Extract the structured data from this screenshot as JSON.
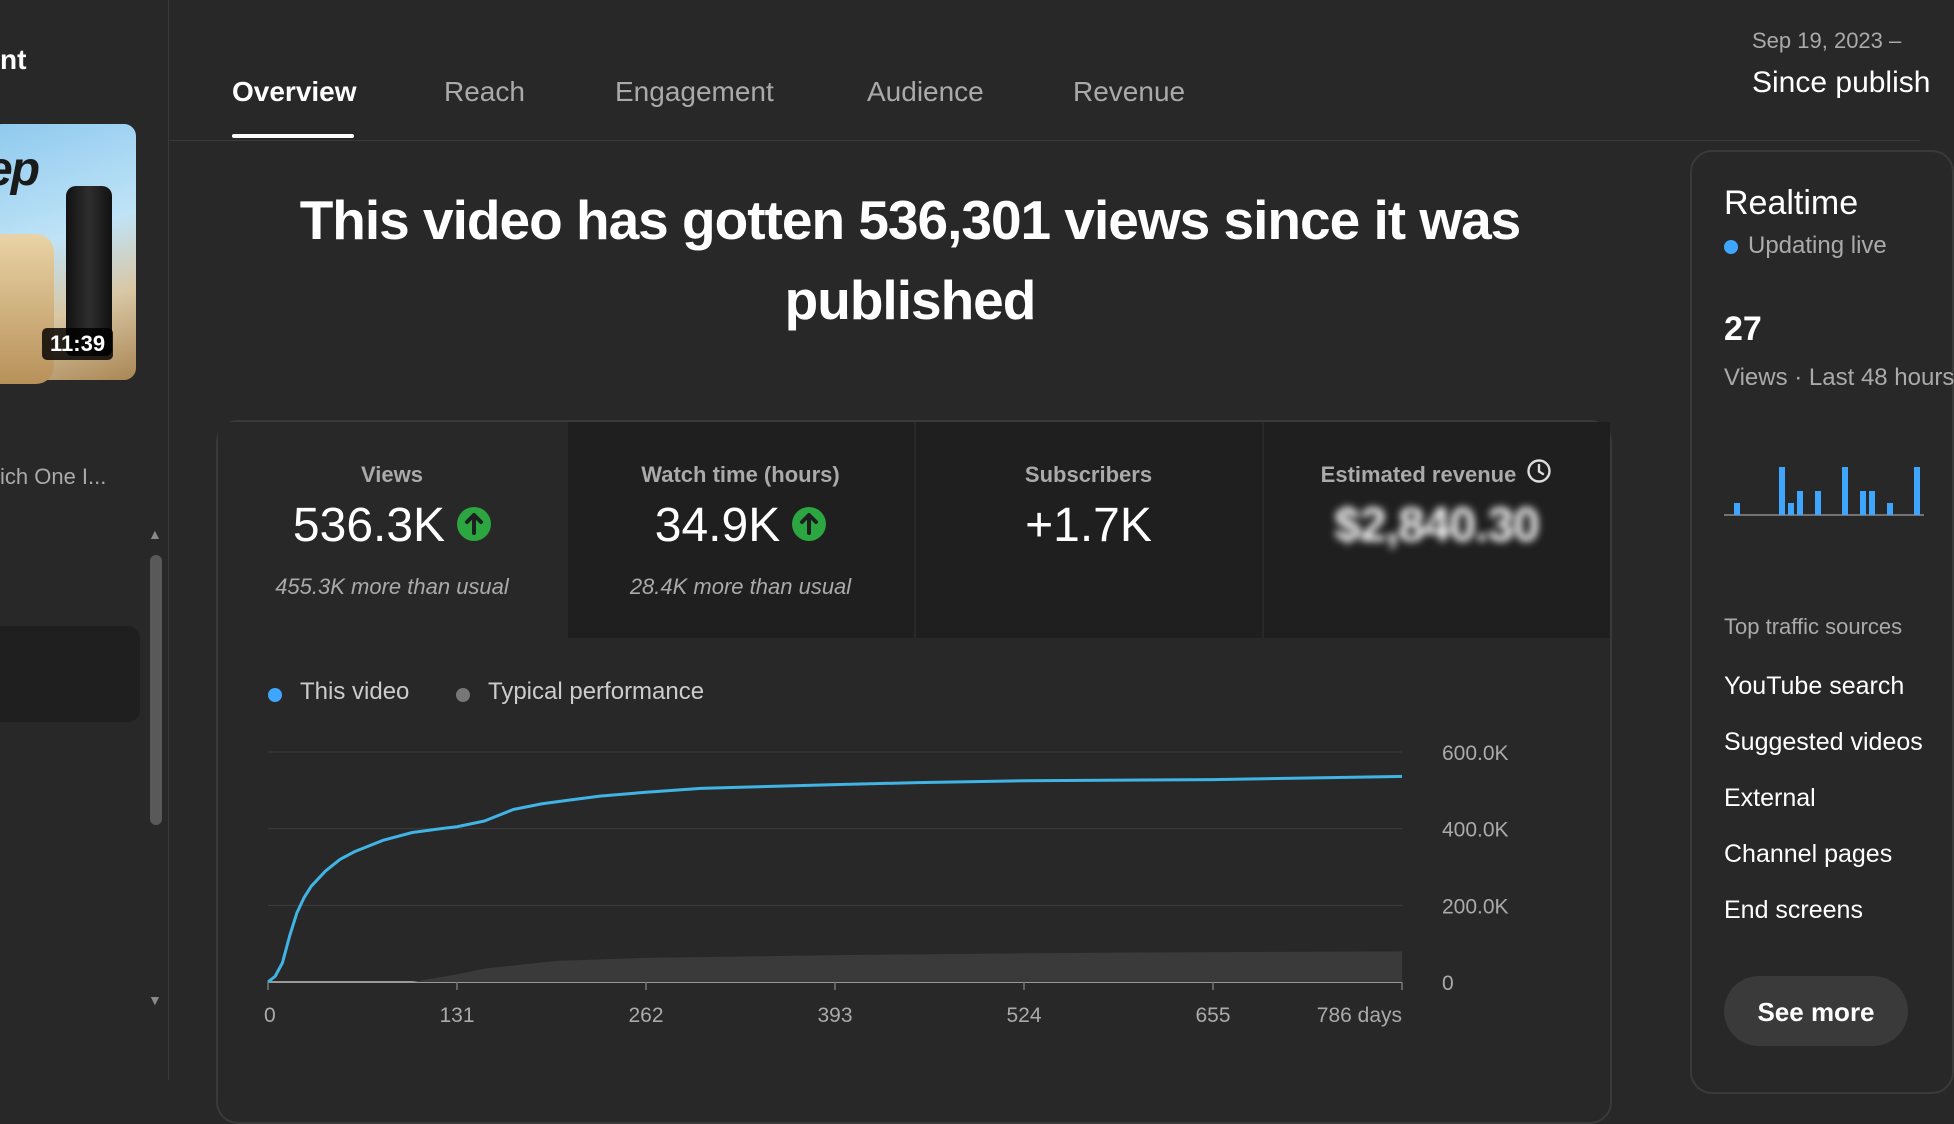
{
  "sidebar": {
    "title_fragment": "nt",
    "thumbnail": {
      "duration": "11:39",
      "brand_text": "ep"
    },
    "video_title_fragment": "ich One I..."
  },
  "tabs": [
    {
      "label": "Overview",
      "active": true
    },
    {
      "label": "Reach",
      "active": false
    },
    {
      "label": "Engagement",
      "active": false
    },
    {
      "label": "Audience",
      "active": false
    },
    {
      "label": "Revenue",
      "active": false
    }
  ],
  "date": {
    "range": "Sep 19, 2023 –",
    "label": "Since publish"
  },
  "headline": "This video has gotten 536,301 views since it was published",
  "metrics": [
    {
      "label": "Views",
      "value": "536.3K",
      "trend": "up",
      "sub": "455.3K more than usual"
    },
    {
      "label": "Watch time (hours)",
      "value": "34.9K",
      "trend": "up",
      "sub": "28.4K more than usual"
    },
    {
      "label": "Subscribers",
      "value": "+1.7K",
      "sub": ""
    },
    {
      "label": "Estimated revenue",
      "value": "$2,840.30",
      "sub": "",
      "obscured": true
    }
  ],
  "legend": {
    "this_video": "This video",
    "typical": "Typical performance"
  },
  "colors": {
    "accent_blue": "#3ea6ff",
    "line_blue": "#41b4e6",
    "up_green": "#2ba640",
    "card_bg": "#1f1f1f",
    "page_bg": "#282828"
  },
  "chart_data": {
    "type": "line",
    "x_unit": "days",
    "x_ticks": [
      "0",
      "131",
      "262",
      "393",
      "524",
      "655",
      "786 days"
    ],
    "y_ticks": [
      "600.0K",
      "400.0K",
      "200.0K",
      "0"
    ],
    "ylim": [
      0,
      600000
    ],
    "xlim": [
      0,
      786
    ],
    "grid": true,
    "legend_position": "top-left",
    "series": [
      {
        "name": "This video",
        "x": [
          0,
          5,
          10,
          15,
          20,
          25,
          30,
          40,
          50,
          60,
          80,
          100,
          120,
          131,
          150,
          170,
          190,
          210,
          230,
          262,
          300,
          393,
          450,
          524,
          655,
          786
        ],
        "y": [
          0,
          15000,
          50000,
          120000,
          180000,
          220000,
          250000,
          290000,
          320000,
          340000,
          370000,
          390000,
          400000,
          405000,
          420000,
          450000,
          465000,
          475000,
          485000,
          495000,
          505000,
          515000,
          520000,
          525000,
          528000,
          536301
        ]
      },
      {
        "name": "Typical performance",
        "x": [
          0,
          100,
          131,
          150,
          200,
          262,
          393,
          524,
          655,
          786
        ],
        "y": [
          0,
          0,
          20000,
          35000,
          55000,
          63000,
          70000,
          75000,
          78000,
          80000
        ]
      }
    ]
  },
  "realtime": {
    "title": "Realtime",
    "status": "Updating live",
    "count": "27",
    "count_label": "Views · Last 48 hours",
    "bars": [
      1,
      0,
      0,
      0,
      0,
      4,
      1,
      2,
      0,
      2,
      0,
      0,
      4,
      0,
      2,
      2,
      0,
      1,
      0,
      0,
      4
    ],
    "traffic_title": "Top traffic sources",
    "sources": [
      "YouTube search",
      "Suggested videos",
      "External",
      "Channel pages",
      "End screens"
    ],
    "see_more": "See more"
  }
}
